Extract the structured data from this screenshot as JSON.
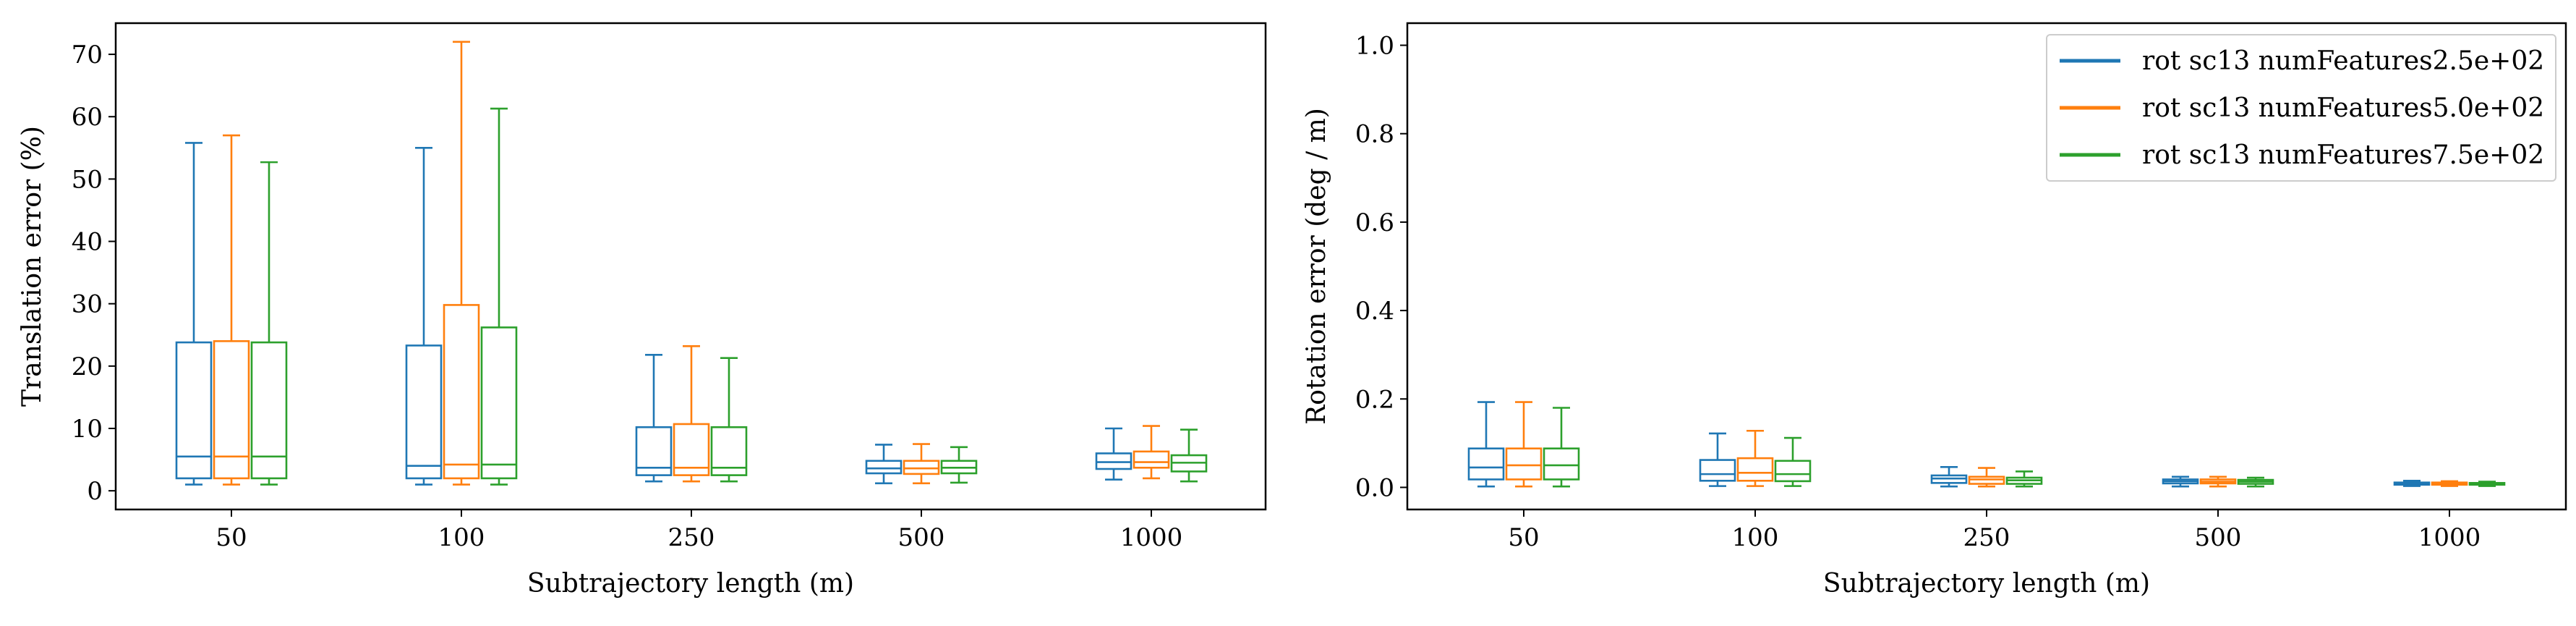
{
  "chart_data": [
    {
      "type": "box",
      "xlabel": "Subtrajectory length (m)",
      "ylabel": "Translation error (%)",
      "categories": [
        "50",
        "100",
        "250",
        "500",
        "1000"
      ],
      "ylim": [
        -3,
        75
      ],
      "yticks": [
        0,
        10,
        20,
        30,
        40,
        50,
        60,
        70
      ],
      "grid": false,
      "series": [
        {
          "color": "#1f77b4",
          "boxes": [
            {
              "whislo": 1.0,
              "q1": 2.0,
              "med": 5.5,
              "q3": 23.8,
              "whishi": 55.8
            },
            {
              "whislo": 1.0,
              "q1": 2.0,
              "med": 4.0,
              "q3": 23.3,
              "whishi": 55.0
            },
            {
              "whislo": 1.5,
              "q1": 2.5,
              "med": 3.7,
              "q3": 10.2,
              "whishi": 21.8
            },
            {
              "whislo": 1.2,
              "q1": 2.8,
              "med": 3.6,
              "q3": 4.8,
              "whishi": 7.4
            },
            {
              "whislo": 1.8,
              "q1": 3.5,
              "med": 4.6,
              "q3": 6.0,
              "whishi": 10.0
            }
          ]
        },
        {
          "color": "#ff7f0e",
          "boxes": [
            {
              "whislo": 1.0,
              "q1": 2.0,
              "med": 5.5,
              "q3": 24.0,
              "whishi": 57.0
            },
            {
              "whislo": 1.0,
              "q1": 2.0,
              "med": 4.2,
              "q3": 29.8,
              "whishi": 72.0
            },
            {
              "whislo": 1.5,
              "q1": 2.5,
              "med": 3.7,
              "q3": 10.7,
              "whishi": 23.2
            },
            {
              "whislo": 1.2,
              "q1": 2.7,
              "med": 3.6,
              "q3": 4.8,
              "whishi": 7.5
            },
            {
              "whislo": 2.0,
              "q1": 3.7,
              "med": 4.6,
              "q3": 6.3,
              "whishi": 10.4
            }
          ]
        },
        {
          "color": "#2ca02c",
          "boxes": [
            {
              "whislo": 1.0,
              "q1": 2.0,
              "med": 5.5,
              "q3": 23.8,
              "whishi": 52.7
            },
            {
              "whislo": 1.0,
              "q1": 2.0,
              "med": 4.2,
              "q3": 26.2,
              "whishi": 61.3
            },
            {
              "whislo": 1.5,
              "q1": 2.5,
              "med": 3.7,
              "q3": 10.2,
              "whishi": 21.3
            },
            {
              "whislo": 1.3,
              "q1": 2.8,
              "med": 3.7,
              "q3": 4.8,
              "whishi": 7.0
            },
            {
              "whislo": 1.5,
              "q1": 3.1,
              "med": 4.5,
              "q3": 5.7,
              "whishi": 9.8
            }
          ]
        }
      ]
    },
    {
      "type": "box",
      "xlabel": "Subtrajectory length (m)",
      "ylabel": "Rotation error (deg / m)",
      "categories": [
        "50",
        "100",
        "250",
        "500",
        "1000"
      ],
      "ylim": [
        -0.05,
        1.05
      ],
      "yticks": [
        "0.0",
        "0.2",
        "0.4",
        "0.6",
        "0.8",
        "1.0"
      ],
      "grid": false,
      "legend_position": "top-right",
      "series": [
        {
          "name": "rot sc13 numFeatures2.5e+02",
          "color": "#1f77b4",
          "boxes": [
            {
              "whislo": 0.002,
              "q1": 0.018,
              "med": 0.045,
              "q3": 0.088,
              "whishi": 0.193
            },
            {
              "whislo": 0.003,
              "q1": 0.015,
              "med": 0.03,
              "q3": 0.062,
              "whishi": 0.122
            },
            {
              "whislo": 0.002,
              "q1": 0.01,
              "med": 0.02,
              "q3": 0.027,
              "whishi": 0.046
            },
            {
              "whislo": 0.002,
              "q1": 0.009,
              "med": 0.014,
              "q3": 0.018,
              "whishi": 0.024
            },
            {
              "whislo": 0.003,
              "q1": 0.006,
              "med": 0.009,
              "q3": 0.011,
              "whishi": 0.015
            }
          ]
        },
        {
          "name": "rot sc13 numFeatures5.0e+02",
          "color": "#ff7f0e",
          "boxes": [
            {
              "whislo": 0.002,
              "q1": 0.018,
              "med": 0.05,
              "q3": 0.088,
              "whishi": 0.193
            },
            {
              "whislo": 0.003,
              "q1": 0.015,
              "med": 0.033,
              "q3": 0.066,
              "whishi": 0.128
            },
            {
              "whislo": 0.002,
              "q1": 0.008,
              "med": 0.018,
              "q3": 0.024,
              "whishi": 0.044
            },
            {
              "whislo": 0.002,
              "q1": 0.009,
              "med": 0.013,
              "q3": 0.018,
              "whishi": 0.024
            },
            {
              "whislo": 0.003,
              "q1": 0.006,
              "med": 0.009,
              "q3": 0.011,
              "whishi": 0.014
            }
          ]
        },
        {
          "name": "rot sc13 numFeatures7.5e+02",
          "color": "#2ca02c",
          "boxes": [
            {
              "whislo": 0.002,
              "q1": 0.018,
              "med": 0.05,
              "q3": 0.088,
              "whishi": 0.18
            },
            {
              "whislo": 0.003,
              "q1": 0.014,
              "med": 0.03,
              "q3": 0.06,
              "whishi": 0.112
            },
            {
              "whislo": 0.002,
              "q1": 0.008,
              "med": 0.016,
              "q3": 0.022,
              "whishi": 0.036
            },
            {
              "whislo": 0.002,
              "q1": 0.008,
              "med": 0.013,
              "q3": 0.017,
              "whishi": 0.022
            },
            {
              "whislo": 0.003,
              "q1": 0.006,
              "med": 0.008,
              "q3": 0.01,
              "whishi": 0.013
            }
          ]
        }
      ]
    }
  ]
}
